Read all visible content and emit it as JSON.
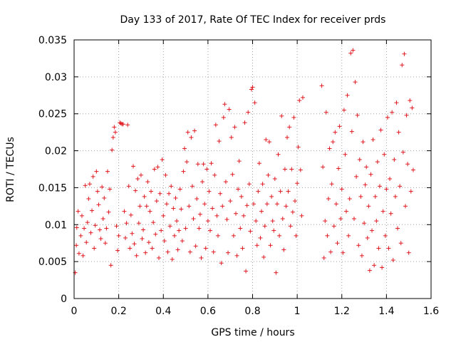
{
  "chart_data": {
    "type": "scatter",
    "title": "Day 133 of 2017, Rate Of TEC Index for receiver prds",
    "xlabel": "GPS time / hours",
    "ylabel": "ROTI / TECUs",
    "xlim": [
      0,
      1.6
    ],
    "ylim": [
      0,
      0.035
    ],
    "xticks": [
      "0",
      "0.2",
      "0.4",
      "0.6",
      "0.8",
      "1",
      "1.2",
      "1.4",
      "1.6"
    ],
    "yticks": [
      "0",
      "0.005",
      "0.01",
      "0.015",
      "0.02",
      "0.025",
      "0.03",
      "0.035"
    ],
    "grid": true,
    "marker": "plus",
    "color": "#e0191f",
    "points": [
      [
        0.005,
        0.0035
      ],
      [
        0.01,
        0.0072
      ],
      [
        0.012,
        0.0096
      ],
      [
        0.018,
        0.0118
      ],
      [
        0.022,
        0.0061
      ],
      [
        0.03,
        0.0085
      ],
      [
        0.035,
        0.0112
      ],
      [
        0.04,
        0.0058
      ],
      [
        0.045,
        0.0095
      ],
      [
        0.05,
        0.0153
      ],
      [
        0.055,
        0.0076
      ],
      [
        0.06,
        0.0103
      ],
      [
        0.065,
        0.0135
      ],
      [
        0.07,
        0.0155
      ],
      [
        0.075,
        0.0089
      ],
      [
        0.08,
        0.0119
      ],
      [
        0.085,
        0.0165
      ],
      [
        0.09,
        0.0068
      ],
      [
        0.095,
        0.0099
      ],
      [
        0.1,
        0.0172
      ],
      [
        0.105,
        0.0145
      ],
      [
        0.11,
        0.0127
      ],
      [
        0.115,
        0.0093
      ],
      [
        0.12,
        0.0081
      ],
      [
        0.125,
        0.0151
      ],
      [
        0.13,
        0.0108
      ],
      [
        0.135,
        0.0136
      ],
      [
        0.14,
        0.0075
      ],
      [
        0.145,
        0.0095
      ],
      [
        0.15,
        0.0172
      ],
      [
        0.155,
        0.0117
      ],
      [
        0.16,
        0.0148
      ],
      [
        0.165,
        0.0045
      ],
      [
        0.17,
        0.0201
      ],
      [
        0.175,
        0.0218
      ],
      [
        0.18,
        0.0232
      ],
      [
        0.185,
        0.0225
      ],
      [
        0.19,
        0.0098
      ],
      [
        0.195,
        0.0065
      ],
      [
        0.2,
        0.0085
      ],
      [
        0.205,
        0.0238
      ],
      [
        0.21,
        0.0237
      ],
      [
        0.215,
        0.0236
      ],
      [
        0.22,
        0.0236
      ],
      [
        0.225,
        0.0118
      ],
      [
        0.23,
        0.0082
      ],
      [
        0.235,
        0.0102
      ],
      [
        0.24,
        0.0235
      ],
      [
        0.245,
        0.0152
      ],
      [
        0.25,
        0.0068
      ],
      [
        0.255,
        0.0113
      ],
      [
        0.26,
        0.0088
      ],
      [
        0.265,
        0.0179
      ],
      [
        0.27,
        0.0074
      ],
      [
        0.275,
        0.0146
      ],
      [
        0.28,
        0.0058
      ],
      [
        0.285,
        0.0162
      ],
      [
        0.29,
        0.0102
      ],
      [
        0.295,
        0.0125
      ],
      [
        0.3,
        0.0167
      ],
      [
        0.305,
        0.0081
      ],
      [
        0.31,
        0.0093
      ],
      [
        0.315,
        0.0138
      ],
      [
        0.32,
        0.0062
      ],
      [
        0.325,
        0.0125
      ],
      [
        0.33,
        0.0158
      ],
      [
        0.335,
        0.0076
      ],
      [
        0.34,
        0.0118
      ],
      [
        0.345,
        0.0145
      ],
      [
        0.35,
        0.0068
      ],
      [
        0.355,
        0.0103
      ],
      [
        0.36,
        0.0175
      ],
      [
        0.365,
        0.0087
      ],
      [
        0.37,
        0.0132
      ],
      [
        0.375,
        0.0178
      ],
      [
        0.38,
        0.0055
      ],
      [
        0.385,
        0.0142
      ],
      [
        0.39,
        0.0092
      ],
      [
        0.395,
        0.0188
      ],
      [
        0.4,
        0.0112
      ],
      [
        0.405,
        0.0078
      ],
      [
        0.41,
        0.0167
      ],
      [
        0.415,
        0.0128
      ],
      [
        0.42,
        0.0063
      ],
      [
        0.425,
        0.0142
      ],
      [
        0.43,
        0.0098
      ],
      [
        0.435,
        0.0152
      ],
      [
        0.44,
        0.0053
      ],
      [
        0.445,
        0.0122
      ],
      [
        0.45,
        0.0085
      ],
      [
        0.455,
        0.0136
      ],
      [
        0.46,
        0.0105
      ],
      [
        0.465,
        0.0066
      ],
      [
        0.47,
        0.0092
      ],
      [
        0.475,
        0.0148
      ],
      [
        0.48,
        0.0121
      ],
      [
        0.485,
        0.0078
      ],
      [
        0.49,
        0.0172
      ],
      [
        0.495,
        0.0203
      ],
      [
        0.5,
        0.0095
      ],
      [
        0.505,
        0.0185
      ],
      [
        0.51,
        0.0225
      ],
      [
        0.515,
        0.0125
      ],
      [
        0.52,
        0.0063
      ],
      [
        0.525,
        0.0218
      ],
      [
        0.53,
        0.0152
      ],
      [
        0.535,
        0.0108
      ],
      [
        0.54,
        0.0227
      ],
      [
        0.545,
        0.0071
      ],
      [
        0.55,
        0.0135
      ],
      [
        0.555,
        0.0182
      ],
      [
        0.56,
        0.0095
      ],
      [
        0.565,
        0.0114
      ],
      [
        0.57,
        0.0055
      ],
      [
        0.575,
        0.0158
      ],
      [
        0.58,
        0.0182
      ],
      [
        0.585,
        0.0128
      ],
      [
        0.59,
        0.0068
      ],
      [
        0.595,
        0.0175
      ],
      [
        0.6,
        0.0105
      ],
      [
        0.605,
        0.0145
      ],
      [
        0.61,
        0.0092
      ],
      [
        0.615,
        0.0183
      ],
      [
        0.62,
        0.0122
      ],
      [
        0.625,
        0.0063
      ],
      [
        0.63,
        0.0167
      ],
      [
        0.635,
        0.0235
      ],
      [
        0.64,
        0.0112
      ],
      [
        0.645,
        0.0085
      ],
      [
        0.65,
        0.0213
      ],
      [
        0.655,
        0.0142
      ],
      [
        0.66,
        0.0048
      ],
      [
        0.665,
        0.0125
      ],
      [
        0.67,
        0.0245
      ],
      [
        0.675,
        0.0263
      ],
      [
        0.68,
        0.0158
      ],
      [
        0.685,
        0.0107
      ],
      [
        0.69,
        0.0062
      ],
      [
        0.695,
        0.0256
      ],
      [
        0.7,
        0.0132
      ],
      [
        0.705,
        0.0218
      ],
      [
        0.71,
        0.0168
      ],
      [
        0.715,
        0.0085
      ],
      [
        0.72,
        0.0232
      ],
      [
        0.725,
        0.0115
      ],
      [
        0.73,
        0.0058
      ],
      [
        0.735,
        0.0148
      ],
      [
        0.74,
        0.0186
      ],
      [
        0.745,
        0.0095
      ],
      [
        0.75,
        0.0138
      ],
      [
        0.755,
        0.0068
      ],
      [
        0.76,
        0.0112
      ],
      [
        0.765,
        0.0238
      ],
      [
        0.77,
        0.0037
      ],
      [
        0.775,
        0.0126
      ],
      [
        0.78,
        0.0252
      ],
      [
        0.785,
        0.0155
      ],
      [
        0.79,
        0.0091
      ],
      [
        0.795,
        0.0283
      ],
      [
        0.8,
        0.0286
      ],
      [
        0.805,
        0.0128
      ],
      [
        0.81,
        0.0265
      ],
      [
        0.815,
        0.0105
      ],
      [
        0.82,
        0.0072
      ],
      [
        0.825,
        0.0145
      ],
      [
        0.83,
        0.0183
      ],
      [
        0.835,
        0.0082
      ],
      [
        0.84,
        0.0118
      ],
      [
        0.845,
        0.0155
      ],
      [
        0.85,
        0.0056
      ],
      [
        0.855,
        0.0098
      ],
      [
        0.86,
        0.0215
      ],
      [
        0.865,
        0.0128
      ],
      [
        0.87,
        0.0167
      ],
      [
        0.875,
        0.0212
      ],
      [
        0.88,
        0.0072
      ],
      [
        0.885,
        0.0138
      ],
      [
        0.89,
        0.0105
      ],
      [
        0.895,
        0.0092
      ],
      [
        0.9,
        0.0162
      ],
      [
        0.905,
        0.0035
      ],
      [
        0.91,
        0.0128
      ],
      [
        0.915,
        0.0195
      ],
      [
        0.92,
        0.0085
      ],
      [
        0.925,
        0.0145
      ],
      [
        0.93,
        0.0247
      ],
      [
        0.935,
        0.0108
      ],
      [
        0.94,
        0.0066
      ],
      [
        0.945,
        0.0175
      ],
      [
        0.95,
        0.0125
      ],
      [
        0.955,
        0.0218
      ],
      [
        0.96,
        0.0145
      ],
      [
        0.965,
        0.0232
      ],
      [
        0.97,
        0.0098
      ],
      [
        0.975,
        0.0175
      ],
      [
        0.98,
        0.0117
      ],
      [
        0.985,
        0.0245
      ],
      [
        0.99,
        0.0132
      ],
      [
        0.995,
        0.0085
      ],
      [
        1.0,
        0.0156
      ],
      [
        1.005,
        0.0205
      ],
      [
        1.01,
        0.0268
      ],
      [
        1.015,
        0.0174
      ],
      [
        1.02,
        0.0112
      ],
      [
        1.025,
        0.0272
      ],
      [
        1.11,
        0.0288
      ],
      [
        1.115,
        0.0178
      ],
      [
        1.12,
        0.0055
      ],
      [
        1.125,
        0.0105
      ],
      [
        1.13,
        0.0252
      ],
      [
        1.135,
        0.0085
      ],
      [
        1.14,
        0.0135
      ],
      [
        1.145,
        0.0203
      ],
      [
        1.15,
        0.0063
      ],
      [
        1.155,
        0.0155
      ],
      [
        1.16,
        0.0212
      ],
      [
        1.165,
        0.0098
      ],
      [
        1.17,
        0.0225
      ],
      [
        1.175,
        0.0128
      ],
      [
        1.18,
        0.0075
      ],
      [
        1.185,
        0.0176
      ],
      [
        1.19,
        0.0233
      ],
      [
        1.195,
        0.0108
      ],
      [
        1.2,
        0.0148
      ],
      [
        1.205,
        0.0062
      ],
      [
        1.21,
        0.0255
      ],
      [
        1.215,
        0.0195
      ],
      [
        1.22,
        0.0118
      ],
      [
        1.225,
        0.0275
      ],
      [
        1.23,
        0.0085
      ],
      [
        1.235,
        0.0135
      ],
      [
        1.24,
        0.0332
      ],
      [
        1.245,
        0.0226
      ],
      [
        1.25,
        0.0336
      ],
      [
        1.255,
        0.0108
      ],
      [
        1.26,
        0.0293
      ],
      [
        1.265,
        0.0165
      ],
      [
        1.27,
        0.0248
      ],
      [
        1.275,
        0.0072
      ],
      [
        1.28,
        0.0188
      ],
      [
        1.285,
        0.0138
      ],
      [
        1.29,
        0.0058
      ],
      [
        1.295,
        0.0212
      ],
      [
        1.3,
        0.0102
      ],
      [
        1.305,
        0.0154
      ],
      [
        1.31,
        0.0178
      ],
      [
        1.315,
        0.0082
      ],
      [
        1.32,
        0.0125
      ],
      [
        1.325,
        0.0038
      ],
      [
        1.33,
        0.0168
      ],
      [
        1.335,
        0.0092
      ],
      [
        1.34,
        0.0215
      ],
      [
        1.345,
        0.0045
      ],
      [
        1.35,
        0.0138
      ],
      [
        1.355,
        0.0105
      ],
      [
        1.36,
        0.0185
      ],
      [
        1.365,
        0.0068
      ],
      [
        1.37,
        0.0152
      ],
      [
        1.375,
        0.0228
      ],
      [
        1.38,
        0.0042
      ],
      [
        1.385,
        0.0118
      ],
      [
        1.39,
        0.0195
      ],
      [
        1.395,
        0.0085
      ],
      [
        1.4,
        0.0148
      ],
      [
        1.405,
        0.0245
      ],
      [
        1.41,
        0.0068
      ],
      [
        1.415,
        0.0162
      ],
      [
        1.42,
        0.0115
      ],
      [
        1.425,
        0.0252
      ],
      [
        1.43,
        0.0052
      ],
      [
        1.435,
        0.0188
      ],
      [
        1.44,
        0.0138
      ],
      [
        1.445,
        0.0265
      ],
      [
        1.45,
        0.0095
      ],
      [
        1.455,
        0.0225
      ],
      [
        1.46,
        0.0152
      ],
      [
        1.465,
        0.0075
      ],
      [
        1.47,
        0.0316
      ],
      [
        1.475,
        0.0198
      ],
      [
        1.48,
        0.0331
      ],
      [
        1.485,
        0.0125
      ],
      [
        1.49,
        0.0248
      ],
      [
        1.495,
        0.0182
      ],
      [
        1.5,
        0.0062
      ],
      [
        1.505,
        0.0268
      ],
      [
        1.51,
        0.0145
      ],
      [
        1.515,
        0.0258
      ],
      [
        1.52,
        0.0174
      ]
    ]
  }
}
